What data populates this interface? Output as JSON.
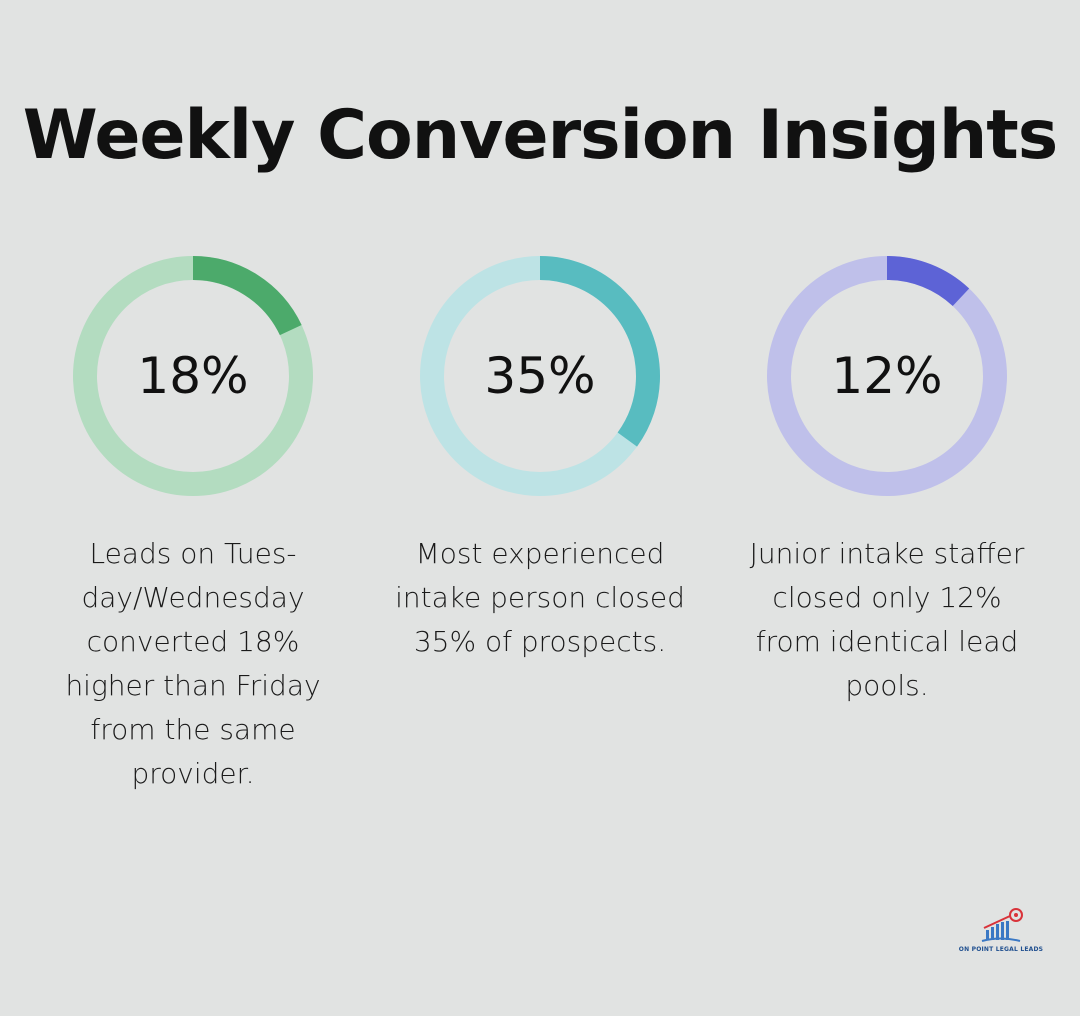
{
  "title": "Weekly Conversion Insights",
  "chart_data": [
    {
      "type": "pie",
      "value": 18,
      "label": "18%",
      "description": "Leads on Tues-day/Wednesday converted 18% higher than Friday from the same provider.",
      "colors": {
        "filled": "#4caa6b",
        "track": "#b3dcc0"
      }
    },
    {
      "type": "pie",
      "value": 35,
      "label": "35%",
      "description": "Most experienced intake person closed 35% of prospects.",
      "colors": {
        "filled": "#58bcc0",
        "track": "#bde3e5"
      }
    },
    {
      "type": "pie",
      "value": 12,
      "label": "12%",
      "description": "Junior intake staffer closed only 12% from identical lead pools.",
      "colors": {
        "filled": "#5d63d6",
        "track": "#bfc0ea"
      }
    }
  ],
  "logo": {
    "text": "ON POINT LEGAL LEADS",
    "icon": "bar-chart-target-icon"
  }
}
